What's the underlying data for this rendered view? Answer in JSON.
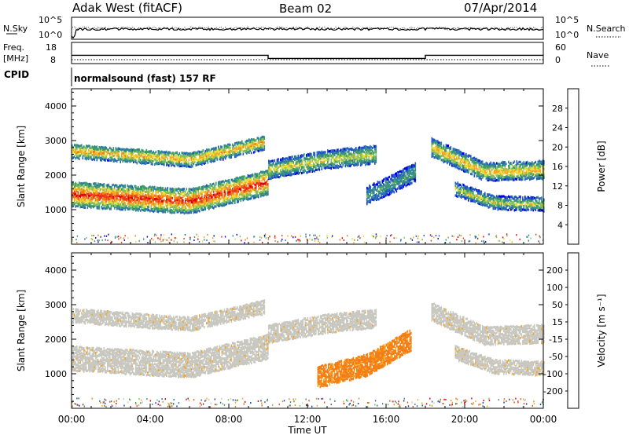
{
  "header": {
    "station": "Adak West (fitACF)",
    "beam": "Beam 02",
    "date": "07/Apr/2014"
  },
  "sky_panel": {
    "left_label": "N.Sky",
    "right_label": "N.Search",
    "ticks_top": "10^5",
    "ticks_bottom": "10^0"
  },
  "freq_panel": {
    "left_label_1": "Freq.",
    "left_label_2": "[MHz]",
    "left_ticks": [
      "18",
      "8"
    ],
    "right_label": "Nave",
    "right_ticks": [
      "60",
      "0"
    ],
    "steps": [
      {
        "start": "00:00",
        "end": "10:00",
        "freq_mhz": 12.0
      },
      {
        "start": "10:00",
        "end": "18:00",
        "freq_mhz": 10.3
      },
      {
        "start": "18:00",
        "end": "24:00",
        "freq_mhz": 12.0
      }
    ],
    "nave": 10
  },
  "cpid": {
    "label": "CPID",
    "value": "normalsound (fast) 157 RF"
  },
  "chart_data": [
    {
      "type": "heatmap",
      "name": "power",
      "ylabel": "Slant Range [km]",
      "ylim": [
        0,
        4500
      ],
      "yticks": [
        "1000",
        "2000",
        "3000",
        "4000"
      ],
      "xlim": [
        "00:00",
        "24:00"
      ],
      "colorbar": {
        "label": "Power [dB]",
        "ticks": [
          "4",
          "8",
          "12",
          "16",
          "20",
          "24",
          "28"
        ],
        "range": [
          0,
          32
        ],
        "colors": [
          "#0000e6",
          "#2355c7",
          "#2f7fa5",
          "#3f9b6a",
          "#82c15e",
          "#e9dc3b",
          "#f5a623",
          "#f07a1a",
          "#ea3c16",
          "#e00000"
        ]
      },
      "echo_bands": [
        {
          "t": [
            0,
            6,
            10
          ],
          "range_km": [
            1450,
            1250,
            1800
          ],
          "width_km": 350,
          "peak": 29
        },
        {
          "t": [
            0,
            6,
            9.8
          ],
          "range_km": [
            2700,
            2450,
            2950
          ],
          "width_km": 200,
          "peak": 22
        },
        {
          "t": [
            10,
            13,
            15.5
          ],
          "range_km": [
            2150,
            2450,
            2600
          ],
          "width_km": 250,
          "peak": 18
        },
        {
          "t": [
            18.3,
            21,
            24
          ],
          "range_km": [
            2800,
            2100,
            2150
          ],
          "width_km": 250,
          "peak": 21
        },
        {
          "t": [
            19.5,
            21.5,
            24
          ],
          "range_km": [
            1600,
            1200,
            1150
          ],
          "width_km": 180,
          "peak": 17
        },
        {
          "t": [
            15,
            16.5,
            17.5
          ],
          "range_km": [
            1400,
            1800,
            2100
          ],
          "width_km": 250,
          "peak": 12
        }
      ]
    },
    {
      "type": "heatmap",
      "name": "velocity",
      "ylabel": "Slant Range [km]",
      "ylim": [
        0,
        4500
      ],
      "yticks": [
        "1000",
        "2000",
        "3000",
        "4000"
      ],
      "xlim": [
        "00:00",
        "24:00"
      ],
      "xticks": [
        "00:00",
        "04:00",
        "08:00",
        "12:00",
        "16:00",
        "20:00",
        "00:00"
      ],
      "xlabel": "Time UT",
      "colorbar": {
        "label": "Velocity [m s⁻¹]",
        "ticks": [
          "-200",
          "-100",
          "-50",
          "-15",
          "15",
          "50",
          "100",
          "200"
        ],
        "colors": [
          "#e00000",
          "#ee4a14",
          "#f37f16",
          "#f5a623",
          "#c8c8c0",
          "#72c048",
          "#3e8e62",
          "#2f63a3",
          "#1133cc"
        ]
      },
      "echo_bands": [
        {
          "t": [
            0,
            6,
            10
          ],
          "range_km": [
            1450,
            1250,
            1800
          ],
          "width_km": 350,
          "velocity": 0
        },
        {
          "t": [
            0,
            6,
            9.8
          ],
          "range_km": [
            2700,
            2450,
            2950
          ],
          "width_km": 200,
          "velocity": 0
        },
        {
          "t": [
            10,
            13,
            15.5
          ],
          "range_km": [
            2150,
            2450,
            2600
          ],
          "width_km": 250,
          "velocity": 0
        },
        {
          "t": [
            18.3,
            21,
            24
          ],
          "range_km": [
            2800,
            2100,
            2150
          ],
          "width_km": 250,
          "velocity": 0
        },
        {
          "t": [
            19.5,
            21.5,
            24
          ],
          "range_km": [
            1600,
            1200,
            1150
          ],
          "width_km": 180,
          "velocity": 0
        },
        {
          "t": [
            12.5,
            15,
            17.3
          ],
          "range_km": [
            900,
            1250,
            2000
          ],
          "width_km": 300,
          "velocity": -60
        }
      ]
    }
  ]
}
